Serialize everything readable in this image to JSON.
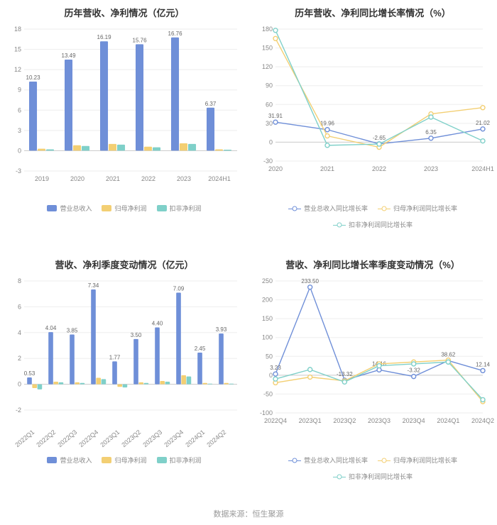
{
  "source_text": "数据来源：恒生聚源",
  "colors": {
    "series_blue": "#6f8fd8",
    "series_yellow": "#f3cf73",
    "series_cyan": "#7fd0c9",
    "grid": "#eeeeee",
    "axis": "#cccccc",
    "tick": "#888888",
    "background": "#ffffff"
  },
  "chart1": {
    "title": "历年营收、净利情况（亿元）",
    "type": "bar",
    "categories": [
      "2019",
      "2020",
      "2021",
      "2022",
      "2023",
      "2024H1"
    ],
    "ylim": [
      -3,
      18
    ],
    "ytick_step": 3,
    "series": [
      {
        "name": "营业总收入",
        "color": "#6f8fd8",
        "values": [
          10.23,
          13.49,
          16.19,
          15.76,
          16.76,
          6.37
        ],
        "show_labels": true
      },
      {
        "name": "归母净利润",
        "color": "#f3cf73",
        "values": [
          0.3,
          0.8,
          1.0,
          0.6,
          1.1,
          0.2
        ],
        "show_labels": false
      },
      {
        "name": "扣非净利润",
        "color": "#7fd0c9",
        "values": [
          0.2,
          0.7,
          0.9,
          0.5,
          1.0,
          0.15
        ],
        "show_labels": false
      }
    ],
    "legend": [
      "营业总收入",
      "归母净利润",
      "扣非净利润"
    ]
  },
  "chart2": {
    "title": "历年营收、净利同比增长率情况（%）",
    "type": "line",
    "categories": [
      "2020",
      "2021",
      "2022",
      "2023",
      "2024H1"
    ],
    "ylim": [
      -30,
      180
    ],
    "ytick_step": 30,
    "series": [
      {
        "name": "营业总收入同比增长率",
        "color": "#6f8fd8",
        "values": [
          31.91,
          19.96,
          -2.65,
          6.35,
          21.02
        ],
        "labels": [
          "31.91",
          "19.96",
          "-2.65",
          "6.35",
          "21.02"
        ],
        "show_labels": true
      },
      {
        "name": "归母净利润同比增长率",
        "color": "#f3cf73",
        "values": [
          165,
          10,
          -8,
          45,
          55
        ],
        "show_labels": false
      },
      {
        "name": "扣非净利润同比增长率",
        "color": "#7fd0c9",
        "values": [
          178,
          -5,
          -3,
          40,
          2
        ],
        "show_labels": false
      }
    ],
    "legend": [
      "营业总收入同比增长率",
      "归母净利润同比增长率",
      "扣非净利润同比增长率"
    ]
  },
  "chart3": {
    "title": "营收、净利季度变动情况（亿元）",
    "type": "bar",
    "categories": [
      "2022Q1",
      "2022Q2",
      "2022Q3",
      "2022Q4",
      "2023Q1",
      "2023Q2",
      "2023Q3",
      "2023Q4",
      "2024Q1",
      "2024Q2"
    ],
    "rotate_x": true,
    "ylim": [
      -2,
      8
    ],
    "ytick_step": 2,
    "series": [
      {
        "name": "营业总收入",
        "color": "#6f8fd8",
        "values": [
          0.53,
          4.04,
          3.85,
          7.34,
          1.77,
          3.5,
          4.4,
          7.09,
          2.45,
          3.93
        ],
        "show_labels": true
      },
      {
        "name": "归母净利润",
        "color": "#f3cf73",
        "values": [
          -0.3,
          0.2,
          0.15,
          0.5,
          -0.2,
          0.15,
          0.25,
          0.7,
          0.1,
          0.1
        ],
        "show_labels": false
      },
      {
        "name": "扣非净利润",
        "color": "#7fd0c9",
        "values": [
          -0.4,
          0.15,
          0.1,
          0.4,
          -0.25,
          0.1,
          0.2,
          0.6,
          0.05,
          0.05
        ],
        "show_labels": false
      }
    ],
    "legend": [
      "营业总收入",
      "归母净利润",
      "扣非净利润"
    ]
  },
  "chart4": {
    "title": "营收、净利同比增长率季度变动情况（%）",
    "type": "line",
    "categories": [
      "2022Q4",
      "2023Q1",
      "2023Q2",
      "2023Q3",
      "2023Q4",
      "2024Q1",
      "2024Q2"
    ],
    "ylim": [
      -100,
      250
    ],
    "ytick_step": 50,
    "series": [
      {
        "name": "营业总收入同比增长率",
        "color": "#6f8fd8",
        "values": [
          3.23,
          233.5,
          -13.32,
          14.16,
          -3.32,
          38.62,
          12.14
        ],
        "labels": [
          "3.23",
          "233.50",
          "-13.32",
          "14.16",
          "-3.32",
          "38.62",
          "12.14"
        ],
        "show_labels": true
      },
      {
        "name": "归母净利润同比增长率",
        "color": "#f3cf73",
        "values": [
          -20,
          -5,
          -15,
          30,
          35,
          40,
          -70
        ],
        "show_labels": false
      },
      {
        "name": "扣非净利润同比增长率",
        "color": "#7fd0c9",
        "values": [
          -10,
          15,
          -18,
          25,
          30,
          35,
          -65
        ],
        "show_labels": false
      }
    ],
    "legend": [
      "营业总收入同比增长率",
      "归母净利润同比增长率",
      "扣非净利润同比增长率"
    ]
  }
}
